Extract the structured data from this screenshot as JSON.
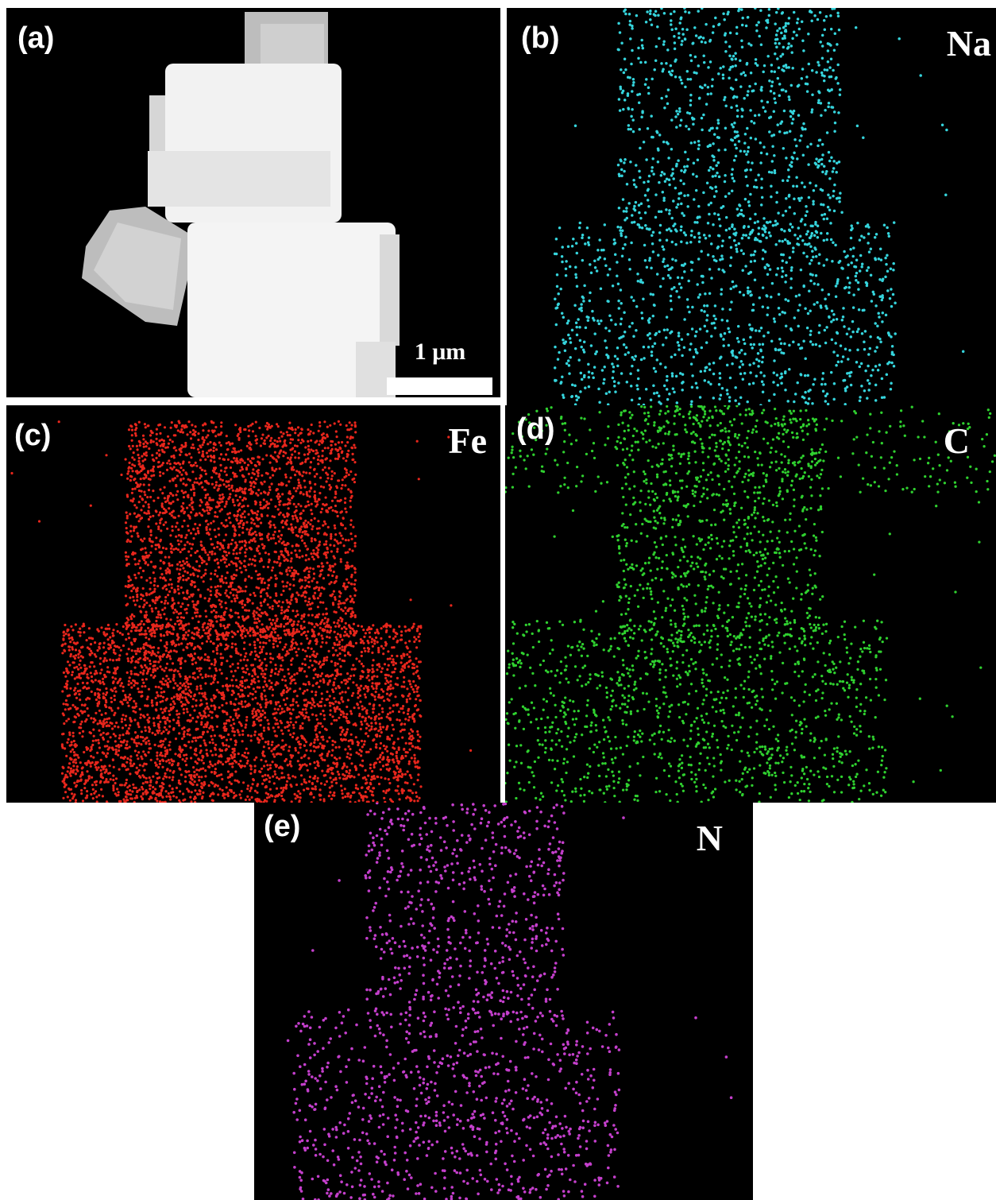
{
  "panels": [
    {
      "label": "(a)",
      "scale_bar": "1 μm"
    },
    {
      "label": "(b)",
      "element": "Na"
    },
    {
      "label": "(c)",
      "element": "Fe"
    },
    {
      "label": "(d)",
      "element": "C"
    },
    {
      "label": "(e)",
      "element": "N"
    }
  ]
}
